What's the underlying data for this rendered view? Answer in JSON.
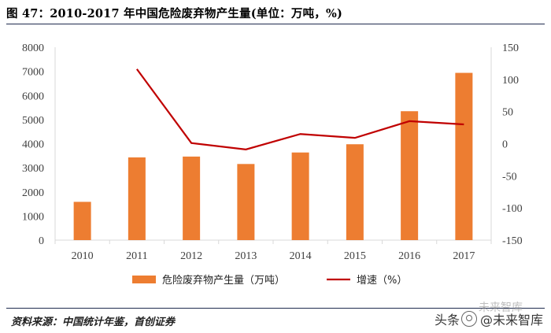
{
  "title": "图 47：2010-2017 年中国危险废弃物产生量(单位：万吨，%)",
  "source": "资料来源：中国统计年鉴，首创证券",
  "watermark": {
    "prefix": "头条",
    "name": "@未来智库",
    "faint_text": "未来智库",
    "icon": "wechat-logo-icon"
  },
  "colors": {
    "bar": "#ED7D31",
    "line": "#C00000",
    "axis": "#D9D9D9",
    "rule": "#1F2B4E"
  },
  "chart_data": {
    "type": "bar+line",
    "categories": [
      "2010",
      "2011",
      "2012",
      "2013",
      "2014",
      "2015",
      "2016",
      "2017"
    ],
    "series": [
      {
        "name": "危险废弃物产生量（万吨）",
        "type": "bar",
        "axis": "left",
        "values": [
          1587,
          3431,
          3465,
          3157,
          3634,
          3976,
          5347,
          6937
        ]
      },
      {
        "name": "增速（%）",
        "type": "line",
        "axis": "right",
        "values": [
          null,
          116,
          1,
          -9,
          15,
          9,
          35,
          30
        ]
      }
    ],
    "y_left": {
      "min": 0,
      "max": 8000,
      "ticks": [
        "0",
        "1000",
        "2000",
        "3000",
        "4000",
        "5000",
        "6000",
        "7000",
        "8000"
      ]
    },
    "y_right": {
      "min": -150,
      "max": 150,
      "ticks": [
        "-150",
        "-100",
        "-50",
        "0",
        "50",
        "100",
        "150"
      ]
    },
    "legend_position": "bottom",
    "grid": false
  }
}
